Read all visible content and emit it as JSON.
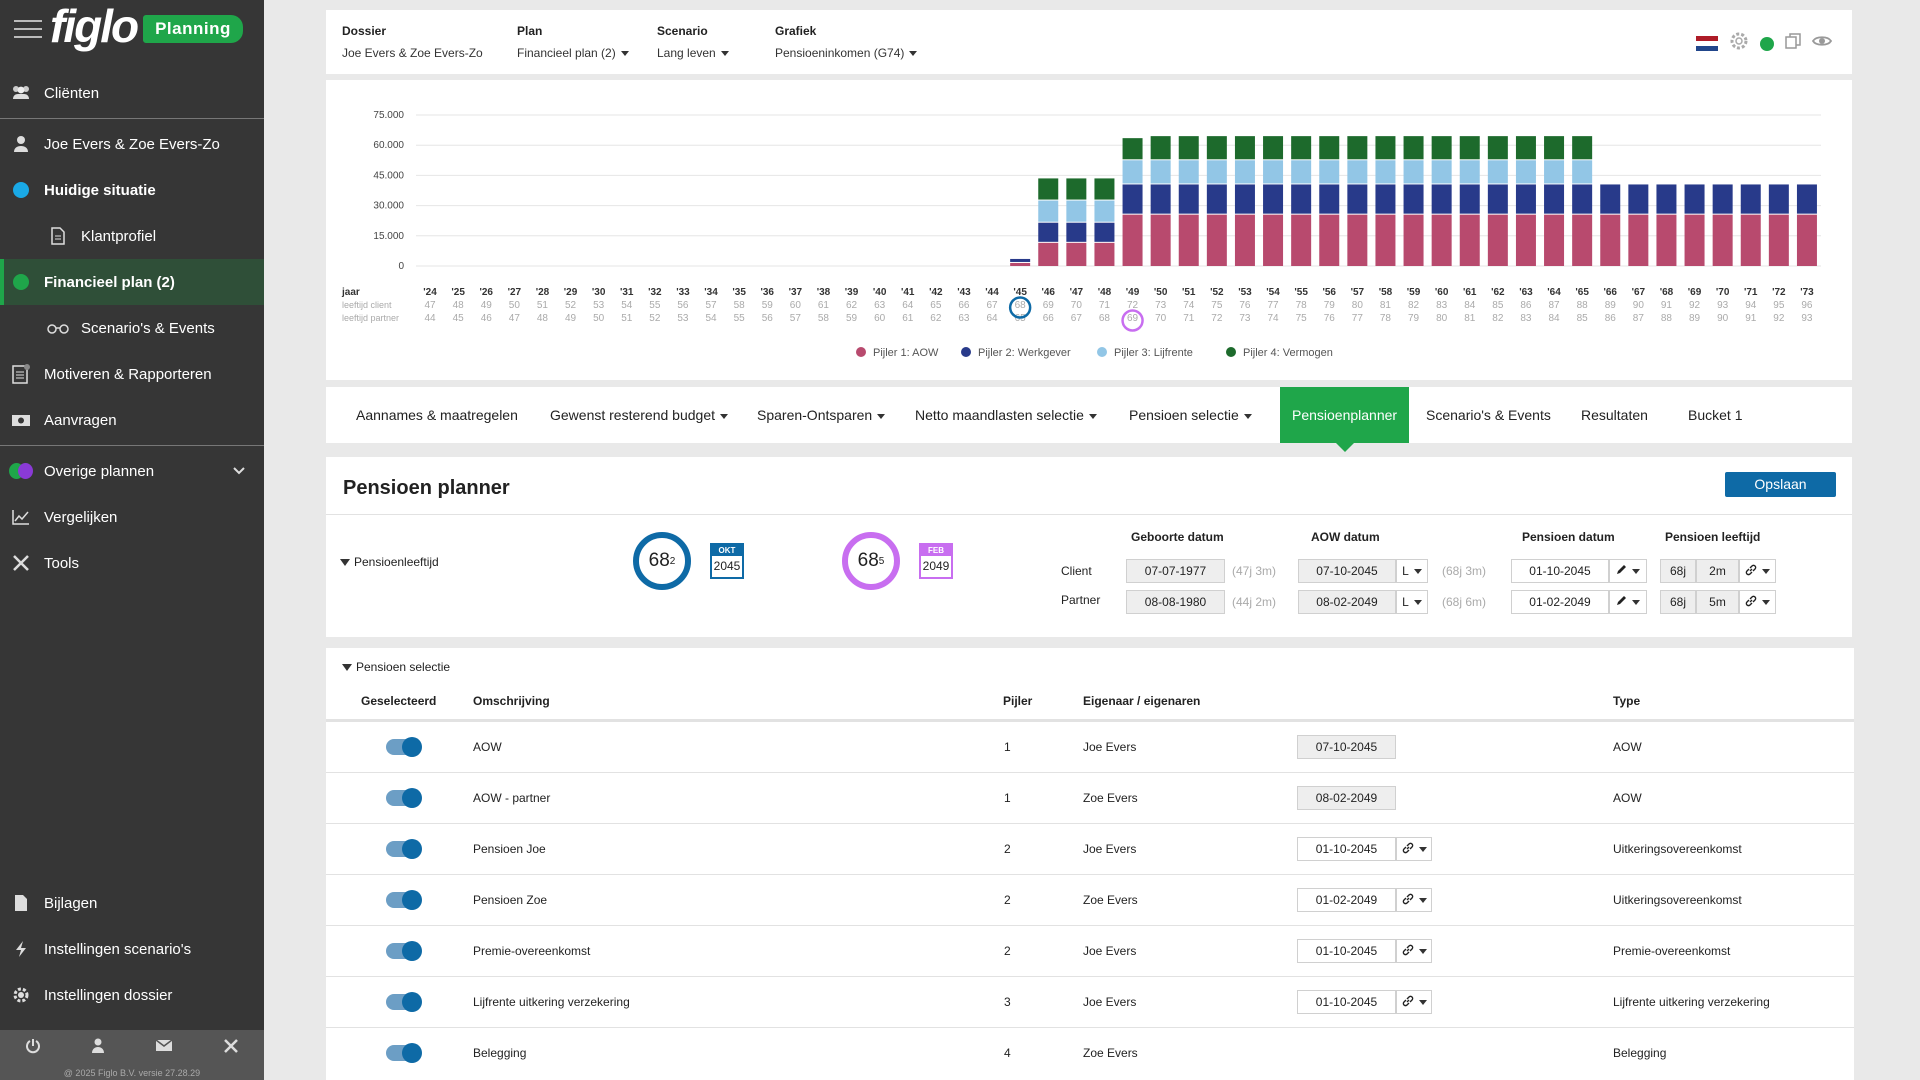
{
  "brand": {
    "logo": "figlo",
    "product": "Planning"
  },
  "sidebar": {
    "items": [
      {
        "label": "Cliënten"
      },
      {
        "label": "Joe Evers & Zoe Evers-Zo"
      },
      {
        "label": "Huidige situatie"
      },
      {
        "label": "Klantprofiel"
      },
      {
        "label": "Financieel plan (2)"
      },
      {
        "label": "Scenario's & Events"
      },
      {
        "label": "Motiveren & Rapporteren"
      },
      {
        "label": "Aanvragen"
      },
      {
        "label": "Overige plannen"
      },
      {
        "label": "Vergelijken"
      },
      {
        "label": "Tools"
      },
      {
        "label": "Bijlagen"
      },
      {
        "label": "Instellingen scenario's"
      },
      {
        "label": "Instellingen dossier"
      }
    ],
    "copyright": "@ 2025 Figlo B.V. versie 27.28.29"
  },
  "header": {
    "dossier": {
      "label": "Dossier",
      "value": "Joe Evers & Zoe Evers-Zo"
    },
    "plan": {
      "label": "Plan",
      "value": "Financieel plan (2)"
    },
    "scenario": {
      "label": "Scenario",
      "value": "Lang leven"
    },
    "grafiek": {
      "label": "Grafiek",
      "value": "Pensioeninkomen (G74)"
    }
  },
  "chart_data": {
    "type": "bar",
    "stacked": true,
    "ylim": [
      0,
      75000
    ],
    "yticks": [
      "75.000",
      "60.000",
      "45.000",
      "30.000",
      "15.000",
      "0"
    ],
    "row_labels": [
      "jaar",
      "leeftijd client",
      "leeftijd partner"
    ],
    "categories": [
      "'24",
      "'25",
      "'26",
      "'27",
      "'28",
      "'29",
      "'30",
      "'31",
      "'32",
      "'33",
      "'34",
      "'35",
      "'36",
      "'37",
      "'38",
      "'39",
      "'40",
      "'41",
      "'42",
      "'43",
      "'44",
      "'45",
      "'46",
      "'47",
      "'48",
      "'49",
      "'50",
      "'51",
      "'52",
      "'53",
      "'54",
      "'55",
      "'56",
      "'57",
      "'58",
      "'59",
      "'60",
      "'61",
      "'62",
      "'63",
      "'64",
      "'65",
      "'66",
      "'67",
      "'68",
      "'69",
      "'70",
      "'71",
      "'72",
      "'73"
    ],
    "age_client": [
      "47",
      "48",
      "49",
      "50",
      "51",
      "52",
      "53",
      "54",
      "55",
      "56",
      "57",
      "58",
      "59",
      "60",
      "61",
      "62",
      "63",
      "64",
      "65",
      "66",
      "67",
      "68",
      "69",
      "70",
      "71",
      "72",
      "73",
      "74",
      "75",
      "76",
      "77",
      "78",
      "79",
      "80",
      "81",
      "82",
      "83",
      "84",
      "85",
      "86",
      "87",
      "88",
      "89",
      "90",
      "91",
      "92",
      "93",
      "94",
      "95",
      "96"
    ],
    "age_partner": [
      "44",
      "45",
      "46",
      "47",
      "48",
      "49",
      "50",
      "51",
      "52",
      "53",
      "54",
      "55",
      "56",
      "57",
      "58",
      "59",
      "60",
      "61",
      "62",
      "63",
      "64",
      "65",
      "66",
      "67",
      "68",
      "69",
      "70",
      "71",
      "72",
      "73",
      "74",
      "75",
      "76",
      "77",
      "78",
      "79",
      "80",
      "81",
      "82",
      "83",
      "84",
      "85",
      "86",
      "87",
      "88",
      "89",
      "90",
      "91",
      "92",
      "93"
    ],
    "series": [
      {
        "name": "Pijler 1: AOW",
        "color": "#b84a6e",
        "values": [
          0,
          0,
          0,
          0,
          0,
          0,
          0,
          0,
          0,
          0,
          0,
          0,
          0,
          0,
          0,
          0,
          0,
          0,
          0,
          0,
          0,
          2000,
          12000,
          12000,
          12000,
          26000,
          26000,
          26000,
          26000,
          26000,
          26000,
          26000,
          26000,
          26000,
          26000,
          26000,
          26000,
          26000,
          26000,
          26000,
          26000,
          26000,
          26000,
          26000,
          26000,
          26000,
          26000,
          26000,
          26000,
          26000
        ]
      },
      {
        "name": "Pijler 2: Werkgever",
        "color": "#283a8a",
        "values": [
          0,
          0,
          0,
          0,
          0,
          0,
          0,
          0,
          0,
          0,
          0,
          0,
          0,
          0,
          0,
          0,
          0,
          0,
          0,
          0,
          0,
          2000,
          10000,
          10000,
          10000,
          15000,
          15000,
          15000,
          15000,
          15000,
          15000,
          15000,
          15000,
          15000,
          15000,
          15000,
          15000,
          15000,
          15000,
          15000,
          15000,
          15000,
          15000,
          15000,
          15000,
          15000,
          15000,
          15000,
          15000,
          15000
        ]
      },
      {
        "name": "Pijler 3: Lijfrente",
        "color": "#92c6e6",
        "values": [
          0,
          0,
          0,
          0,
          0,
          0,
          0,
          0,
          0,
          0,
          0,
          0,
          0,
          0,
          0,
          0,
          0,
          0,
          0,
          0,
          0,
          0,
          11000,
          11000,
          11000,
          12000,
          12000,
          12000,
          12000,
          12000,
          12000,
          12000,
          12000,
          12000,
          12000,
          12000,
          12000,
          12000,
          12000,
          12000,
          12000,
          12000,
          0,
          0,
          0,
          0,
          0,
          0,
          0,
          0
        ]
      },
      {
        "name": "Pijler 4: Vermogen",
        "color": "#1d6a2c",
        "values": [
          0,
          0,
          0,
          0,
          0,
          0,
          0,
          0,
          0,
          0,
          0,
          0,
          0,
          0,
          0,
          0,
          0,
          0,
          0,
          0,
          0,
          0,
          11000,
          11000,
          11000,
          11000,
          12000,
          12000,
          12000,
          12000,
          12000,
          12000,
          12000,
          12000,
          12000,
          12000,
          12000,
          12000,
          12000,
          12000,
          12000,
          12000,
          0,
          0,
          0,
          0,
          0,
          0,
          0,
          0
        ]
      }
    ],
    "markers": {
      "client_index": 21,
      "partner_index": 25
    },
    "legend_position": "bottom",
    "grid": true
  },
  "tabs": [
    {
      "label": "Aannames & maatregelen",
      "dropdown": false
    },
    {
      "label": "Gewenst resterend budget",
      "dropdown": true
    },
    {
      "label": "Sparen-Ontsparen",
      "dropdown": true
    },
    {
      "label": "Netto maandlasten selectie",
      "dropdown": true
    },
    {
      "label": "Pensioen selectie",
      "dropdown": true
    },
    {
      "label": "Pensioenplanner",
      "dropdown": false
    },
    {
      "label": "Scenario's & Events",
      "dropdown": false
    },
    {
      "label": "Resultaten",
      "dropdown": false
    },
    {
      "label": "Bucket 1",
      "dropdown": false
    }
  ],
  "planner": {
    "title": "Pensioen planner",
    "save": "Opslaan",
    "section": "Pensioenleeftijd",
    "client_age": {
      "value": "68",
      "sup": "2",
      "month": "OKT",
      "year": "2045"
    },
    "partner_age": {
      "value": "68",
      "sup": "5",
      "month": "FEB",
      "year": "2049"
    },
    "columns": [
      "Geboorte datum",
      "AOW datum",
      "Pensioen datum",
      "Pensioen leeftijd"
    ],
    "rows": [
      {
        "label": "Client",
        "birth": "07-07-1977",
        "birth_age": "(47j 3m)",
        "aow": "07-10-2045",
        "aow_mode": "L",
        "aow_age": "(68j 3m)",
        "pension": "01-10-2045",
        "years": "68j",
        "months": "2m"
      },
      {
        "label": "Partner",
        "birth": "08-08-1980",
        "birth_age": "(44j 2m)",
        "aow": "08-02-2049",
        "aow_mode": "L",
        "aow_age": "(68j 6m)",
        "pension": "01-02-2049",
        "years": "68j",
        "months": "5m"
      }
    ]
  },
  "selection": {
    "title": "Pensioen selectie",
    "headers": [
      "Geselecteerd",
      "Omschrijving",
      "Pijler",
      "Eigenaar / eigenaren",
      "Type"
    ],
    "rows": [
      {
        "desc": "AOW",
        "pillar": "1",
        "owner": "Joe Evers",
        "date": "07-10-2045",
        "linked": false,
        "type": "AOW",
        "selected": true
      },
      {
        "desc": "AOW - partner",
        "pillar": "1",
        "owner": "Zoe Evers",
        "date": "08-02-2049",
        "linked": false,
        "type": "AOW",
        "selected": true
      },
      {
        "desc": "Pensioen Joe",
        "pillar": "2",
        "owner": "Joe Evers",
        "date": "01-10-2045",
        "linked": true,
        "type": "Uitkeringsovereenkomst",
        "selected": true
      },
      {
        "desc": "Pensioen Zoe",
        "pillar": "2",
        "owner": "Zoe Evers",
        "date": "01-02-2049",
        "linked": true,
        "type": "Uitkeringsovereenkomst",
        "selected": true
      },
      {
        "desc": "Premie-overeenkomst",
        "pillar": "2",
        "owner": "Joe Evers",
        "date": "01-10-2045",
        "linked": true,
        "type": "Premie-overeenkomst",
        "selected": true
      },
      {
        "desc": "Lijfrente uitkering verzekering",
        "pillar": "3",
        "owner": "Joe Evers",
        "date": "01-10-2045",
        "linked": true,
        "type": "Lijfrente uitkering verzekering",
        "selected": true
      },
      {
        "desc": "Belegging",
        "pillar": "4",
        "owner": "Zoe Evers",
        "date": "",
        "linked": false,
        "type": "Belegging",
        "selected": true
      }
    ]
  }
}
